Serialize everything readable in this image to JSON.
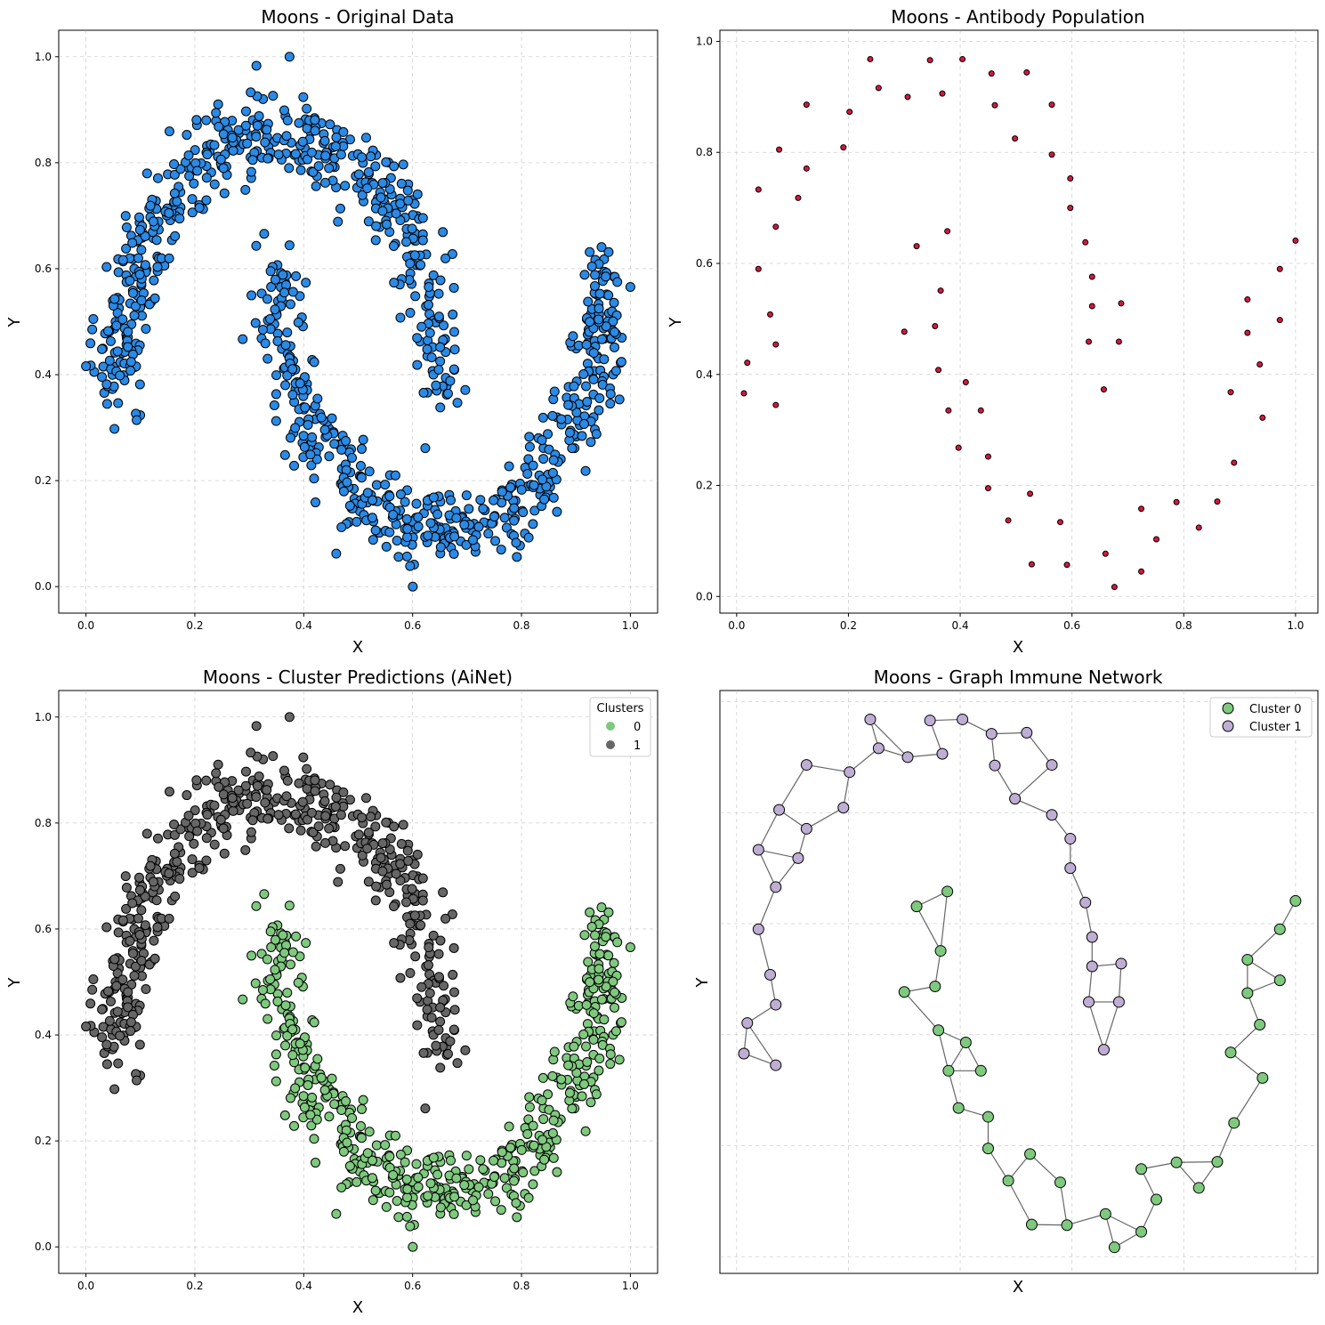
{
  "colors": {
    "blue": "#2a8ae6",
    "crimson": "#d6173c",
    "green": "#7fc97f",
    "gray": "#666666",
    "purple": "#beaed4",
    "edge": "#000000",
    "grid": "#b0b0b0",
    "network_edge": "#666666"
  },
  "chart_data": [
    {
      "type": "scatter",
      "title": "Moons - Original Data",
      "xlabel": "X",
      "ylabel": "Y",
      "xlim": [
        -0.05,
        1.05
      ],
      "ylim": [
        -0.05,
        1.05
      ],
      "xticks": [
        "0.0",
        "0.2",
        "0.4",
        "0.6",
        "0.8",
        "1.0"
      ],
      "yticks": [
        "0.0",
        "0.2",
        "0.4",
        "0.6",
        "0.8",
        "1.0"
      ],
      "grid": true,
      "points_per_moon": 500,
      "series": [
        {
          "color": "blue",
          "points": "two interleaving moons, 1000 points (x, y in [0, 1]): upper arc centered (0.35, ~0.58), lower arc centered (0.65, ~0.42), noise ~0.03"
        }
      ]
    },
    {
      "type": "scatter",
      "title": "Moons - Antibody Population",
      "xlabel": "X",
      "ylabel": "Y",
      "xlim": [
        -0.03,
        1.04
      ],
      "ylim": [
        -0.03,
        1.02
      ],
      "xticks": [
        "0.0",
        "0.2",
        "0.4",
        "0.6",
        "0.8",
        "1.0"
      ],
      "yticks": [
        "0.0",
        "0.2",
        "0.4",
        "0.6",
        "0.8",
        "1.0"
      ],
      "grid": true,
      "series": [
        {
          "color": "crimson",
          "points": [
            [
              0.013,
              0.366
            ],
            [
              0.019,
              0.421
            ],
            [
              0.039,
              0.59
            ],
            [
              0.039,
              0.733
            ],
            [
              0.06,
              0.508
            ],
            [
              0.07,
              0.454
            ],
            [
              0.07,
              0.345
            ],
            [
              0.07,
              0.666
            ],
            [
              0.076,
              0.805
            ],
            [
              0.11,
              0.718
            ],
            [
              0.125,
              0.771
            ],
            [
              0.125,
              0.886
            ],
            [
              0.191,
              0.809
            ],
            [
              0.202,
              0.873
            ],
            [
              0.239,
              0.968
            ],
            [
              0.254,
              0.916
            ],
            [
              0.306,
              0.9
            ],
            [
              0.322,
              0.631
            ],
            [
              0.3,
              0.477
            ],
            [
              0.346,
              0.966
            ],
            [
              0.355,
              0.487
            ],
            [
              0.361,
              0.408
            ],
            [
              0.365,
              0.551
            ],
            [
              0.368,
              0.906
            ],
            [
              0.377,
              0.658
            ],
            [
              0.379,
              0.335
            ],
            [
              0.397,
              0.268
            ],
            [
              0.404,
              0.968
            ],
            [
              0.41,
              0.386
            ],
            [
              0.437,
              0.335
            ],
            [
              0.45,
              0.252
            ],
            [
              0.45,
              0.195
            ],
            [
              0.456,
              0.942
            ],
            [
              0.462,
              0.885
            ],
            [
              0.486,
              0.137
            ],
            [
              0.498,
              0.825
            ],
            [
              0.519,
              0.944
            ],
            [
              0.525,
              0.185
            ],
            [
              0.528,
              0.058
            ],
            [
              0.564,
              0.796
            ],
            [
              0.564,
              0.886
            ],
            [
              0.579,
              0.134
            ],
            [
              0.591,
              0.057
            ],
            [
              0.597,
              0.7
            ],
            [
              0.597,
              0.753
            ],
            [
              0.624,
              0.638
            ],
            [
              0.63,
              0.459
            ],
            [
              0.636,
              0.523
            ],
            [
              0.636,
              0.576
            ],
            [
              0.657,
              0.373
            ],
            [
              0.66,
              0.077
            ],
            [
              0.676,
              0.017
            ],
            [
              0.684,
              0.459
            ],
            [
              0.688,
              0.528
            ],
            [
              0.724,
              0.158
            ],
            [
              0.724,
              0.045
            ],
            [
              0.751,
              0.103
            ],
            [
              0.787,
              0.17
            ],
            [
              0.827,
              0.124
            ],
            [
              0.86,
              0.171
            ],
            [
              0.884,
              0.368
            ],
            [
              0.89,
              0.241
            ],
            [
              0.914,
              0.475
            ],
            [
              0.914,
              0.535
            ],
            [
              0.936,
              0.418
            ],
            [
              0.941,
              0.322
            ],
            [
              0.972,
              0.498
            ],
            [
              0.972,
              0.59
            ],
            [
              1.0,
              0.641
            ]
          ]
        }
      ]
    },
    {
      "type": "scatter",
      "title": "Moons - Cluster Predictions (AiNet)",
      "xlabel": "X",
      "ylabel": "Y",
      "xlim": [
        -0.05,
        1.05
      ],
      "ylim": [
        -0.05,
        1.05
      ],
      "xticks": [
        "0.0",
        "0.2",
        "0.4",
        "0.6",
        "0.8",
        "1.0"
      ],
      "yticks": [
        "0.0",
        "0.2",
        "0.4",
        "0.6",
        "0.8",
        "1.0"
      ],
      "grid": true,
      "legend": {
        "title": "Clusters",
        "placement": "top-right"
      },
      "series": [
        {
          "name": "0",
          "color": "green",
          "points": "lower moon (same data as panel 1)"
        },
        {
          "name": "1",
          "color": "gray",
          "points": "upper moon (same data as panel 1)"
        }
      ]
    },
    {
      "type": "scatter",
      "title": "Moons - Graph Immune Network",
      "xlabel": "X",
      "ylabel": "Y",
      "xlim": [
        -0.03,
        1.04
      ],
      "ylim": [
        -0.03,
        1.02
      ],
      "grid": true,
      "legend": {
        "placement": "top-right"
      },
      "series": [
        {
          "name": "Cluster 0",
          "color": "green"
        },
        {
          "name": "Cluster 1",
          "color": "purple"
        }
      ],
      "nodes": "same 69 antibody points as panel 2; Cluster 0 = points left of the inner boundary of the lower moon, Cluster 1 = upper moon",
      "edges": "chains linking each antibody to its nearest neighbours"
    }
  ]
}
